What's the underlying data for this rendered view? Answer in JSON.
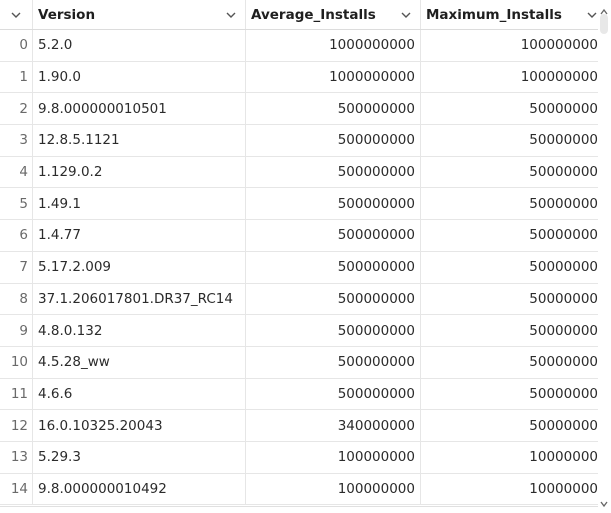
{
  "table": {
    "columns": [
      {
        "label": ""
      },
      {
        "label": "Version"
      },
      {
        "label": "Average_Installs"
      },
      {
        "label": "Maximum_Installs"
      }
    ],
    "rows": [
      {
        "index": "0",
        "version": "5.2.0",
        "average_installs": "1000000000",
        "maximum_installs": "100000000"
      },
      {
        "index": "1",
        "version": "1.90.0",
        "average_installs": "1000000000",
        "maximum_installs": "100000000"
      },
      {
        "index": "2",
        "version": "9.8.000000010501",
        "average_installs": "500000000",
        "maximum_installs": "50000000"
      },
      {
        "index": "3",
        "version": "12.8.5.1121",
        "average_installs": "500000000",
        "maximum_installs": "50000000"
      },
      {
        "index": "4",
        "version": "1.129.0.2",
        "average_installs": "500000000",
        "maximum_installs": "50000000"
      },
      {
        "index": "5",
        "version": "1.49.1",
        "average_installs": "500000000",
        "maximum_installs": "50000000"
      },
      {
        "index": "6",
        "version": "1.4.77",
        "average_installs": "500000000",
        "maximum_installs": "50000000"
      },
      {
        "index": "7",
        "version": "5.17.2.009",
        "average_installs": "500000000",
        "maximum_installs": "50000000"
      },
      {
        "index": "8",
        "version": "37.1.206017801.DR37_RC14",
        "average_installs": "500000000",
        "maximum_installs": "50000000"
      },
      {
        "index": "9",
        "version": "4.8.0.132",
        "average_installs": "500000000",
        "maximum_installs": "50000000"
      },
      {
        "index": "10",
        "version": "4.5.28_ww",
        "average_installs": "500000000",
        "maximum_installs": "50000000"
      },
      {
        "index": "11",
        "version": "4.6.6",
        "average_installs": "500000000",
        "maximum_installs": "50000000"
      },
      {
        "index": "12",
        "version": "16.0.10325.20043",
        "average_installs": "340000000",
        "maximum_installs": "50000000"
      },
      {
        "index": "13",
        "version": "5.29.3",
        "average_installs": "100000000",
        "maximum_installs": "10000000"
      },
      {
        "index": "14",
        "version": "9.8.000000010492",
        "average_installs": "100000000",
        "maximum_installs": "10000000"
      }
    ]
  },
  "icons": {
    "index_menu": "chevron-down-icon",
    "column_menu": "chevron-down-icon",
    "scroll_up": "triangle-up-icon",
    "scroll_down": "triangle-down-icon"
  }
}
